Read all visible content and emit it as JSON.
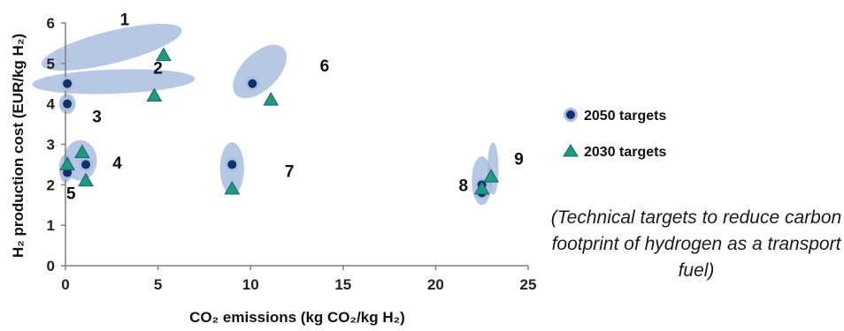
{
  "chart_data": {
    "type": "scatter",
    "xlabel": "CO₂ emissions (kg CO₂/kg H₂)",
    "ylabel": "H₂ production cost (EUR/kg H₂)",
    "xlim": [
      0,
      25
    ],
    "ylim": [
      0,
      6
    ],
    "x_ticks": [
      "0",
      "5",
      "10",
      "15",
      "20",
      "25"
    ],
    "y_ticks": [
      "0",
      "1",
      "2",
      "3",
      "4",
      "5",
      "6"
    ],
    "legend_position": "right",
    "series": [
      {
        "name": "2050 targets",
        "marker": "circle",
        "color": "#12306b",
        "points": [
          {
            "x": 0.1,
            "y": 4.5
          },
          {
            "x": 0.1,
            "y": 4.0
          },
          {
            "x": 0.1,
            "y": 2.3
          },
          {
            "x": 1.1,
            "y": 2.5
          },
          {
            "x": 10.1,
            "y": 4.5
          },
          {
            "x": 9.0,
            "y": 2.5
          },
          {
            "x": 22.5,
            "y": 1.8
          },
          {
            "x": 22.5,
            "y": 2.0
          }
        ]
      },
      {
        "name": "2030 targets",
        "marker": "triangle",
        "color": "#1f9a7a",
        "points": [
          {
            "x": 5.3,
            "y": 5.2
          },
          {
            "x": 4.8,
            "y": 4.2
          },
          {
            "x": 0.1,
            "y": 2.5
          },
          {
            "x": 0.9,
            "y": 2.8
          },
          {
            "x": 1.1,
            "y": 2.1
          },
          {
            "x": 11.1,
            "y": 4.1
          },
          {
            "x": 9.0,
            "y": 1.9
          },
          {
            "x": 22.5,
            "y": 1.9
          },
          {
            "x": 23.0,
            "y": 2.2
          }
        ]
      }
    ],
    "groups": [
      {
        "label": "1",
        "label_x": 3.2,
        "label_y": 6.1,
        "cx": 2.5,
        "cy": 5.4,
        "rx": 3.9,
        "ry": 0.4,
        "angle": 14
      },
      {
        "label": "2",
        "label_x": 5.0,
        "label_y": 4.9,
        "cx": 2.6,
        "cy": 4.55,
        "rx": 4.4,
        "ry": 0.3,
        "angle": 2
      },
      {
        "label": "3",
        "label_x": 1.7,
        "label_y": 3.7,
        "cx": 0.1,
        "cy": 4.0,
        "rx": 0.45,
        "ry": 0.25,
        "angle": 0
      },
      {
        "label": "4",
        "label_x": 2.8,
        "label_y": 2.55,
        "cx": 0.8,
        "cy": 2.6,
        "rx": 0.9,
        "ry": 0.5,
        "angle": 0
      },
      {
        "label": "5",
        "label_x": 0.3,
        "label_y": 1.8,
        "cx": 0.0,
        "cy": 2.4,
        "rx": 0.35,
        "ry": 0.35,
        "angle": 0
      },
      {
        "label": "6",
        "label_x": 14.0,
        "label_y": 4.95,
        "cx": 10.5,
        "cy": 4.8,
        "rx": 1.8,
        "ry": 0.45,
        "angle": 45
      },
      {
        "label": "7",
        "label_x": 12.1,
        "label_y": 2.35,
        "cx": 9.0,
        "cy": 2.4,
        "rx": 0.65,
        "ry": 0.65,
        "angle": 0
      },
      {
        "label": "8",
        "label_x": 21.5,
        "label_y": 2.0,
        "cx": 22.5,
        "cy": 2.1,
        "rx": 0.55,
        "ry": 0.6,
        "angle": 0
      },
      {
        "label": "9",
        "label_x": 24.5,
        "label_y": 2.65,
        "cx": 23.1,
        "cy": 2.4,
        "rx": 0.3,
        "ry": 0.65,
        "angle": 0
      }
    ],
    "note": "(Technical targets to reduce carbon footprint of hydrogen as a transport fuel)"
  }
}
